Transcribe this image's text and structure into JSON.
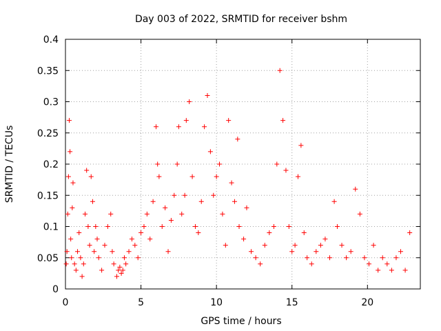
{
  "chart_data": {
    "type": "scatter",
    "title": "Day 003 of 2022, SRMTID for receiver bshm",
    "xlabel": "GPS time / hours",
    "ylabel": "SRMTID / TECUs",
    "xlim": [
      0,
      23.5
    ],
    "ylim": [
      0,
      0.4
    ],
    "x_ticks": [
      0,
      5,
      10,
      15,
      20
    ],
    "x_tick_labels": [
      "0",
      "5",
      "10",
      "15",
      "20"
    ],
    "y_ticks": [
      0,
      0.05,
      0.1,
      0.15,
      0.2,
      0.25,
      0.3,
      0.35,
      0.4
    ],
    "y_tick_labels": [
      "0",
      "0.05",
      "0.1",
      "0.15",
      "0.2",
      "0.25",
      "0.3",
      "0.35",
      "0.4"
    ],
    "grid": true,
    "marker": "+",
    "marker_color": "#ff0000",
    "series": [
      {
        "name": "SRMTID",
        "points": [
          [
            0.05,
            0.04
          ],
          [
            0.1,
            0.06
          ],
          [
            0.15,
            0.12
          ],
          [
            0.2,
            0.18
          ],
          [
            0.25,
            0.27
          ],
          [
            0.3,
            0.22
          ],
          [
            0.35,
            0.08
          ],
          [
            0.4,
            0.05
          ],
          [
            0.45,
            0.13
          ],
          [
            0.5,
            0.17
          ],
          [
            0.6,
            0.04
          ],
          [
            0.7,
            0.03
          ],
          [
            0.8,
            0.06
          ],
          [
            0.9,
            0.09
          ],
          [
            1.0,
            0.05
          ],
          [
            1.1,
            0.02
          ],
          [
            1.2,
            0.04
          ],
          [
            1.3,
            0.12
          ],
          [
            1.4,
            0.19
          ],
          [
            1.5,
            0.1
          ],
          [
            1.6,
            0.07
          ],
          [
            1.7,
            0.18
          ],
          [
            1.8,
            0.14
          ],
          [
            1.9,
            0.06
          ],
          [
            2.0,
            0.1
          ],
          [
            2.1,
            0.08
          ],
          [
            2.2,
            0.05
          ],
          [
            2.4,
            0.03
          ],
          [
            2.6,
            0.07
          ],
          [
            2.8,
            0.1
          ],
          [
            3.0,
            0.12
          ],
          [
            3.1,
            0.06
          ],
          [
            3.2,
            0.04
          ],
          [
            3.4,
            0.02
          ],
          [
            3.5,
            0.03
          ],
          [
            3.6,
            0.035
          ],
          [
            3.7,
            0.025
          ],
          [
            3.8,
            0.03
          ],
          [
            3.9,
            0.05
          ],
          [
            4.0,
            0.04
          ],
          [
            4.2,
            0.06
          ],
          [
            4.4,
            0.08
          ],
          [
            4.6,
            0.07
          ],
          [
            4.8,
            0.05
          ],
          [
            5.0,
            0.09
          ],
          [
            5.2,
            0.1
          ],
          [
            5.4,
            0.12
          ],
          [
            5.6,
            0.08
          ],
          [
            5.8,
            0.14
          ],
          [
            6.0,
            0.26
          ],
          [
            6.1,
            0.2
          ],
          [
            6.2,
            0.18
          ],
          [
            6.4,
            0.1
          ],
          [
            6.6,
            0.13
          ],
          [
            6.8,
            0.06
          ],
          [
            7.0,
            0.11
          ],
          [
            7.2,
            0.15
          ],
          [
            7.4,
            0.2
          ],
          [
            7.5,
            0.26
          ],
          [
            7.7,
            0.12
          ],
          [
            7.9,
            0.15
          ],
          [
            8.0,
            0.27
          ],
          [
            8.2,
            0.3
          ],
          [
            8.4,
            0.18
          ],
          [
            8.6,
            0.1
          ],
          [
            8.8,
            0.09
          ],
          [
            9.0,
            0.14
          ],
          [
            9.2,
            0.26
          ],
          [
            9.4,
            0.31
          ],
          [
            9.6,
            0.22
          ],
          [
            9.8,
            0.15
          ],
          [
            10.0,
            0.18
          ],
          [
            10.2,
            0.2
          ],
          [
            10.4,
            0.12
          ],
          [
            10.6,
            0.07
          ],
          [
            10.8,
            0.27
          ],
          [
            11.0,
            0.17
          ],
          [
            11.2,
            0.14
          ],
          [
            11.4,
            0.24
          ],
          [
            11.5,
            0.1
          ],
          [
            11.8,
            0.08
          ],
          [
            12.0,
            0.13
          ],
          [
            12.3,
            0.06
          ],
          [
            12.6,
            0.05
          ],
          [
            12.9,
            0.04
          ],
          [
            13.2,
            0.07
          ],
          [
            13.5,
            0.09
          ],
          [
            13.8,
            0.1
          ],
          [
            14.0,
            0.2
          ],
          [
            14.2,
            0.35
          ],
          [
            14.4,
            0.27
          ],
          [
            14.6,
            0.19
          ],
          [
            14.8,
            0.1
          ],
          [
            15.0,
            0.06
          ],
          [
            15.2,
            0.07
          ],
          [
            15.4,
            0.18
          ],
          [
            15.6,
            0.23
          ],
          [
            15.8,
            0.09
          ],
          [
            16.0,
            0.05
          ],
          [
            16.3,
            0.04
          ],
          [
            16.6,
            0.06
          ],
          [
            16.9,
            0.07
          ],
          [
            17.2,
            0.08
          ],
          [
            17.5,
            0.05
          ],
          [
            17.8,
            0.14
          ],
          [
            18.0,
            0.1
          ],
          [
            18.3,
            0.07
          ],
          [
            18.6,
            0.05
          ],
          [
            18.9,
            0.06
          ],
          [
            19.2,
            0.16
          ],
          [
            19.5,
            0.12
          ],
          [
            19.8,
            0.05
          ],
          [
            20.1,
            0.04
          ],
          [
            20.4,
            0.07
          ],
          [
            20.7,
            0.03
          ],
          [
            21.0,
            0.05
          ],
          [
            21.3,
            0.04
          ],
          [
            21.6,
            0.03
          ],
          [
            21.9,
            0.05
          ],
          [
            22.2,
            0.06
          ],
          [
            22.5,
            0.03
          ],
          [
            22.8,
            0.09
          ]
        ]
      }
    ]
  }
}
